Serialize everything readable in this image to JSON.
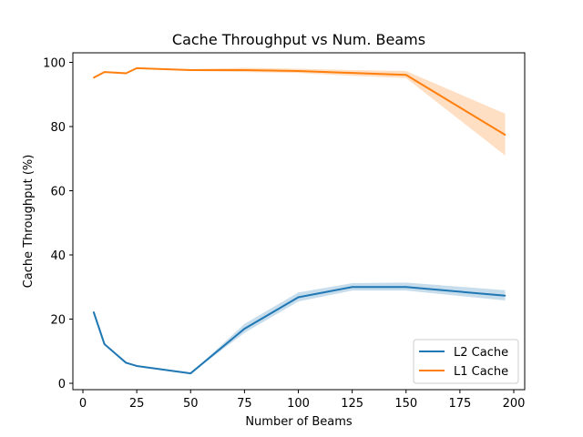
{
  "chart_data": {
    "type": "line",
    "title": "Cache Throughput vs Num. Beams",
    "xlabel": "Number of Beams",
    "ylabel": "Cache Throughput (%)",
    "xlim": [
      0,
      200
    ],
    "ylim": [
      0,
      100
    ],
    "xticks": [
      0,
      25,
      50,
      75,
      100,
      125,
      150,
      175,
      200
    ],
    "yticks": [
      0,
      20,
      40,
      60,
      80,
      100
    ],
    "grid": false,
    "legend_position": "bottom-right",
    "series": [
      {
        "name": "L2 Cache",
        "color": "#1f77b4",
        "x": [
          5,
          10,
          20,
          25,
          50,
          75,
          100,
          125,
          150,
          196
        ],
        "y": [
          22.2,
          12.2,
          6.4,
          5.4,
          3.1,
          17.0,
          26.8,
          30.0,
          30.0,
          27.3
        ],
        "lower": [
          22.2,
          12.2,
          6.4,
          5.4,
          3.1,
          15.7,
          25.5,
          28.9,
          28.9,
          25.8
        ],
        "upper": [
          22.2,
          12.2,
          6.4,
          5.4,
          3.1,
          18.5,
          28.3,
          31.2,
          31.4,
          29.0
        ]
      },
      {
        "name": "L1 Cache",
        "color": "#ff7f0e",
        "x": [
          5,
          10,
          20,
          25,
          50,
          75,
          100,
          125,
          150,
          196
        ],
        "y": [
          95.2,
          97.0,
          96.6,
          98.2,
          97.6,
          97.6,
          97.3,
          96.7,
          96.1,
          77.4
        ],
        "lower": [
          95.0,
          96.9,
          96.5,
          98.1,
          97.3,
          97.0,
          96.7,
          95.8,
          95.1,
          71.0
        ],
        "upper": [
          95.4,
          97.1,
          96.7,
          98.3,
          97.9,
          98.3,
          98.0,
          97.6,
          97.3,
          84.0
        ]
      }
    ]
  }
}
